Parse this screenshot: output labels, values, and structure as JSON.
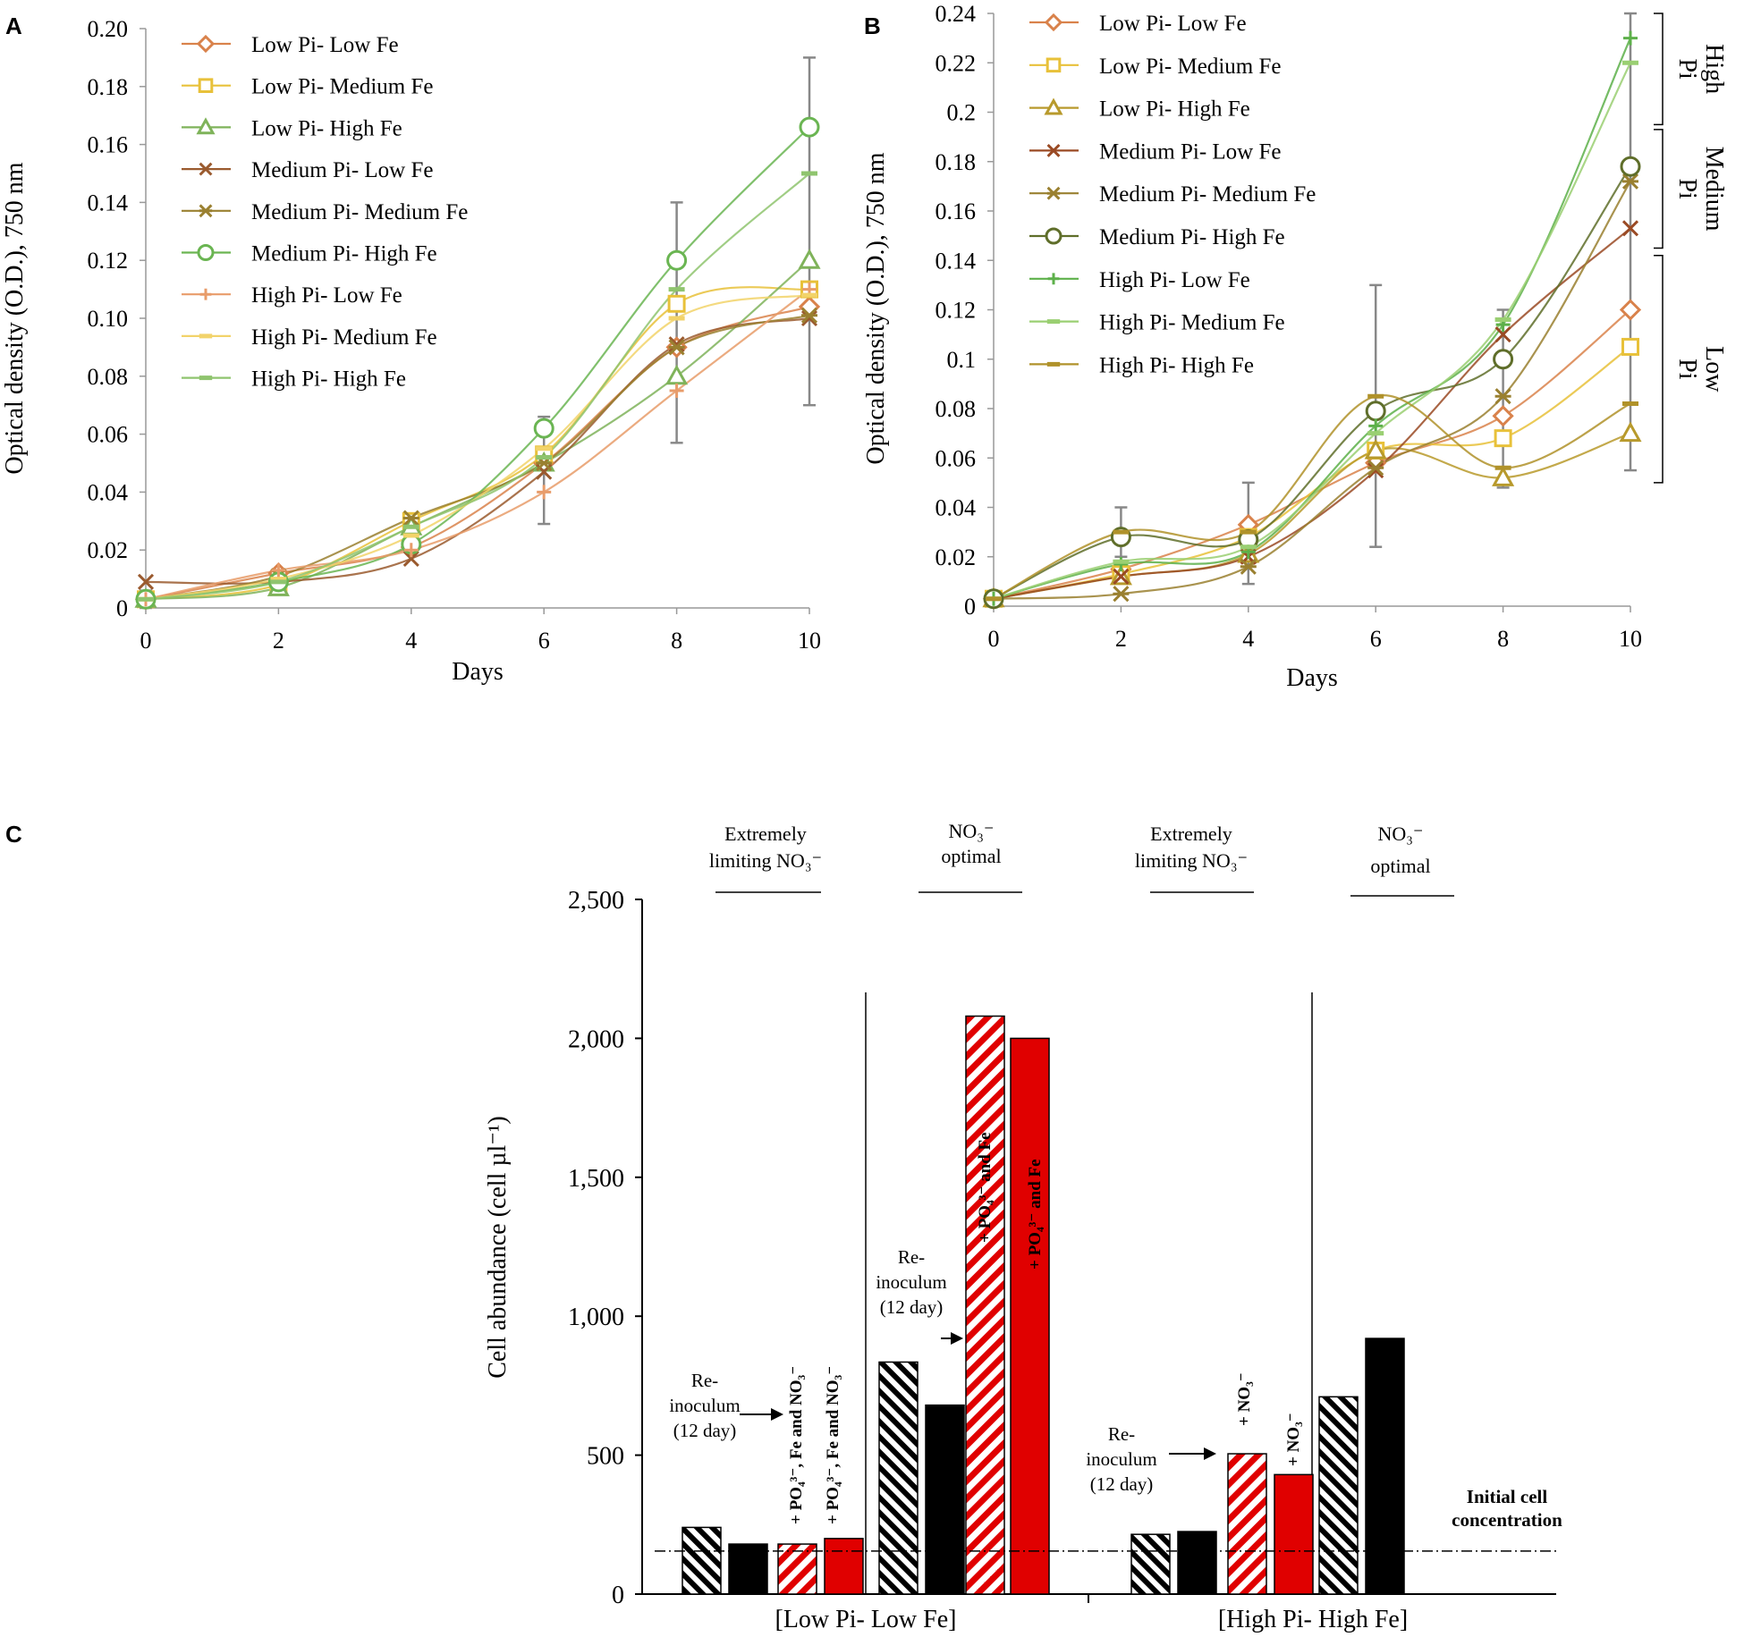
{
  "chart_data": [
    {
      "panel": "A",
      "type": "line",
      "xlabel": "Days",
      "ylabel": "Optical density (O.D.), 750 nm",
      "xlim": [
        0,
        10
      ],
      "ylim": [
        0,
        0.2
      ],
      "xticks": [
        "0",
        "2",
        "4",
        "6",
        "8",
        "10"
      ],
      "yticks": [
        "0",
        "0.02",
        "0.04",
        "0.06",
        "0.08",
        "0.10",
        "0.12",
        "0.14",
        "0.16",
        "0.18",
        "0.20"
      ],
      "ytick_values": [
        0,
        0.02,
        0.04,
        0.06,
        0.08,
        0.1,
        0.12,
        0.14,
        0.16,
        0.18,
        0.2
      ],
      "legend_position": "top-left",
      "x": [
        0,
        2,
        4,
        6,
        8,
        10
      ],
      "series": [
        {
          "name": "Low Pi- Low Fe",
          "color": "#D9824B",
          "marker": "diamond",
          "values": [
            0.003,
            0.012,
            0.021,
            0.05,
            0.09,
            0.104
          ]
        },
        {
          "name": "Low Pi- Medium Fe",
          "color": "#E8C13A",
          "marker": "square",
          "values": [
            0.003,
            0.008,
            0.03,
            0.053,
            0.105,
            0.11
          ]
        },
        {
          "name": "Low Pi- High Fe",
          "color": "#7FB35A",
          "marker": "triangle",
          "values": [
            0.003,
            0.007,
            0.028,
            0.05,
            0.08,
            0.12
          ]
        },
        {
          "name": "Medium Pi- Low Fe",
          "color": "#9A5A2E",
          "marker": "x",
          "values": [
            0.009,
            0.009,
            0.017,
            0.047,
            0.091,
            0.1
          ]
        },
        {
          "name": "Medium Pi- Medium Fe",
          "color": "#9A8030",
          "marker": "star",
          "values": [
            0.003,
            0.011,
            0.031,
            0.05,
            0.09,
            0.101
          ]
        },
        {
          "name": "Medium Pi- High Fe",
          "color": "#6AB552",
          "marker": "circle",
          "values": [
            0.003,
            0.009,
            0.022,
            0.062,
            0.12,
            0.166
          ]
        },
        {
          "name": "High Pi- Low Fe",
          "color": "#E89C6A",
          "marker": "plus",
          "values": [
            0.003,
            0.013,
            0.02,
            0.04,
            0.075,
            0.11
          ]
        },
        {
          "name": "High Pi- Medium Fe",
          "color": "#F2D36A",
          "marker": "dash",
          "values": [
            0.003,
            0.01,
            0.025,
            0.055,
            0.1,
            0.108
          ]
        },
        {
          "name": "High Pi- High Fe",
          "color": "#8FC46E",
          "marker": "dash",
          "values": [
            0.003,
            0.009,
            0.028,
            0.052,
            0.11,
            0.15
          ]
        }
      ],
      "error_bars": [
        {
          "x": 0,
          "y": 0.003,
          "low": 0.0,
          "high": 0.006
        },
        {
          "x": 6,
          "y": 0.04,
          "low": 0.029,
          "high": 0.066
        },
        {
          "x": 8,
          "y": 0.09,
          "low": 0.057,
          "high": 0.14
        },
        {
          "x": 10,
          "y": 0.13,
          "low": 0.07,
          "high": 0.19
        }
      ]
    },
    {
      "panel": "B",
      "type": "line",
      "xlabel": "Days",
      "ylabel": "Optical density (O.D.), 750 nm",
      "xlim": [
        0,
        10
      ],
      "ylim": [
        0,
        0.24
      ],
      "xticks": [
        "0",
        "2",
        "4",
        "6",
        "8",
        "10"
      ],
      "yticks": [
        "0",
        "0.02",
        "0.04",
        "0.06",
        "0.08",
        "0.1",
        "0.12",
        "0.14",
        "0.16",
        "0.18",
        "0.2",
        "0.22",
        "0.24"
      ],
      "ytick_values": [
        0,
        0.02,
        0.04,
        0.06,
        0.08,
        0.1,
        0.12,
        0.14,
        0.16,
        0.18,
        0.2,
        0.22,
        0.24
      ],
      "legend_position": "top-left",
      "x": [
        0,
        2,
        4,
        6,
        8,
        10
      ],
      "series": [
        {
          "name": "Low Pi- Low Fe",
          "color": "#D9824B",
          "marker": "diamond",
          "values": [
            0.003,
            0.015,
            0.033,
            0.058,
            0.077,
            0.12
          ]
        },
        {
          "name": "Low Pi- Medium Fe",
          "color": "#E8C13A",
          "marker": "square",
          "values": [
            0.003,
            0.013,
            0.028,
            0.063,
            0.068,
            0.105
          ]
        },
        {
          "name": "Low Pi- High Fe",
          "color": "#B89A2C",
          "marker": "triangle",
          "values": [
            0.003,
            0.012,
            0.021,
            0.063,
            0.052,
            0.07
          ]
        },
        {
          "name": "Medium Pi- Low Fe",
          "color": "#9A4A24",
          "marker": "x",
          "values": [
            0.003,
            0.012,
            0.02,
            0.055,
            0.11,
            0.153
          ]
        },
        {
          "name": "Medium Pi- Medium Fe",
          "color": "#9A8030",
          "marker": "star",
          "values": [
            0.003,
            0.005,
            0.016,
            0.056,
            0.085,
            0.172
          ]
        },
        {
          "name": "Medium Pi- High Fe",
          "color": "#5F6E2A",
          "marker": "circle",
          "values": [
            0.003,
            0.028,
            0.027,
            0.079,
            0.1,
            0.178
          ]
        },
        {
          "name": "High Pi- Low Fe",
          "color": "#5DB04A",
          "marker": "plus",
          "values": [
            0.003,
            0.017,
            0.022,
            0.073,
            0.114,
            0.23
          ]
        },
        {
          "name": "High Pi- Medium Fe",
          "color": "#9ACF72",
          "marker": "dash",
          "values": [
            0.003,
            0.018,
            0.024,
            0.07,
            0.116,
            0.22
          ]
        },
        {
          "name": "High Pi- High Fe",
          "color": "#B0922A",
          "marker": "dash",
          "values": [
            0.003,
            0.03,
            0.03,
            0.085,
            0.056,
            0.082
          ]
        }
      ],
      "error_bars": [
        {
          "x": 0,
          "y": 0.003,
          "low": 0.0,
          "high": 0.006
        },
        {
          "x": 2,
          "y": 0.028,
          "low": 0.02,
          "high": 0.04
        },
        {
          "x": 4,
          "y": 0.027,
          "low": 0.009,
          "high": 0.05
        },
        {
          "x": 6,
          "y": 0.08,
          "low": 0.024,
          "high": 0.13
        },
        {
          "x": 8,
          "y": 0.1,
          "low": 0.048,
          "high": 0.12
        },
        {
          "x": 10,
          "y": 0.2,
          "low": 0.055,
          "high": 0.24
        }
      ],
      "brackets": [
        {
          "label_lines": [
            "High",
            "Pi"
          ],
          "from": 0.195,
          "to": 0.24
        },
        {
          "label_lines": [
            "Medium",
            "Pi"
          ],
          "from": 0.145,
          "to": 0.193
        },
        {
          "label_lines": [
            "Low",
            "Pi"
          ],
          "from": 0.05,
          "to": 0.142
        }
      ]
    },
    {
      "panel": "C",
      "type": "bar",
      "ylabel": "Cell abundance (cell µl⁻¹)",
      "ylim": [
        0,
        2500
      ],
      "yticks": [
        "0",
        "500",
        "1,000",
        "1,500",
        "2,000",
        "2,500"
      ],
      "ytick_values": [
        0,
        500,
        1000,
        1500,
        2000,
        2500
      ],
      "groups": [
        "[Low Pi- Low Fe]",
        "[High Pi- High Fe]"
      ],
      "bars": [
        {
          "group": 0,
          "pattern": "black-hatch",
          "value": 240
        },
        {
          "group": 0,
          "pattern": "black",
          "value": 180
        },
        {
          "group": 0,
          "pattern": "red-hatch",
          "value": 180
        },
        {
          "group": 0,
          "pattern": "red",
          "value": 200
        },
        {
          "group": 0,
          "pattern": "black-hatch",
          "value": 835
        },
        {
          "group": 0,
          "pattern": "black",
          "value": 680
        },
        {
          "group": 0,
          "pattern": "red-hatch",
          "value": 2080
        },
        {
          "group": 0,
          "pattern": "red",
          "value": 2000
        },
        {
          "group": 1,
          "pattern": "black-hatch",
          "value": 215
        },
        {
          "group": 1,
          "pattern": "black",
          "value": 225
        },
        {
          "group": 1,
          "pattern": "red-hatch",
          "value": 505
        },
        {
          "group": 1,
          "pattern": "red",
          "value": 430
        },
        {
          "group": 1,
          "pattern": "black-hatch",
          "value": 710
        },
        {
          "group": 1,
          "pattern": "black",
          "value": 920
        }
      ],
      "initial_concentration": 155,
      "initial_label": [
        "Initial cell",
        "concentration"
      ],
      "condition_headers": [
        {
          "lines": [
            "Extremely",
            "limiting NO₃⁻"
          ]
        },
        {
          "lines": [
            "NO₃⁻",
            "optimal"
          ]
        },
        {
          "lines": [
            "Extremely",
            "limiting NO₃⁻"
          ]
        },
        {
          "lines": [
            "NO₃⁻",
            "optimal"
          ]
        }
      ],
      "reinoculum_labels": [
        {
          "lines": [
            "Re-",
            "inoculum",
            "(12 day)"
          ]
        },
        {
          "lines": [
            "Re-",
            "inoculum",
            "(12 day)"
          ]
        },
        {
          "lines": [
            "Re-",
            "inoculum",
            "(12 day)"
          ]
        }
      ],
      "bar_annotations": [
        {
          "text": "+ PO₄³⁻, Fe and NO₃⁻"
        },
        {
          "text": "+ PO₄³⁻, Fe and NO₃⁻"
        },
        {
          "text": "+ PO₄³⁻ and Fe"
        },
        {
          "text": "+ PO₄³⁻ and Fe"
        },
        {
          "text": "+ NO₃⁻"
        },
        {
          "text": "+ NO₃⁻"
        }
      ]
    }
  ],
  "panel_labels": [
    "A",
    "B",
    "C"
  ]
}
